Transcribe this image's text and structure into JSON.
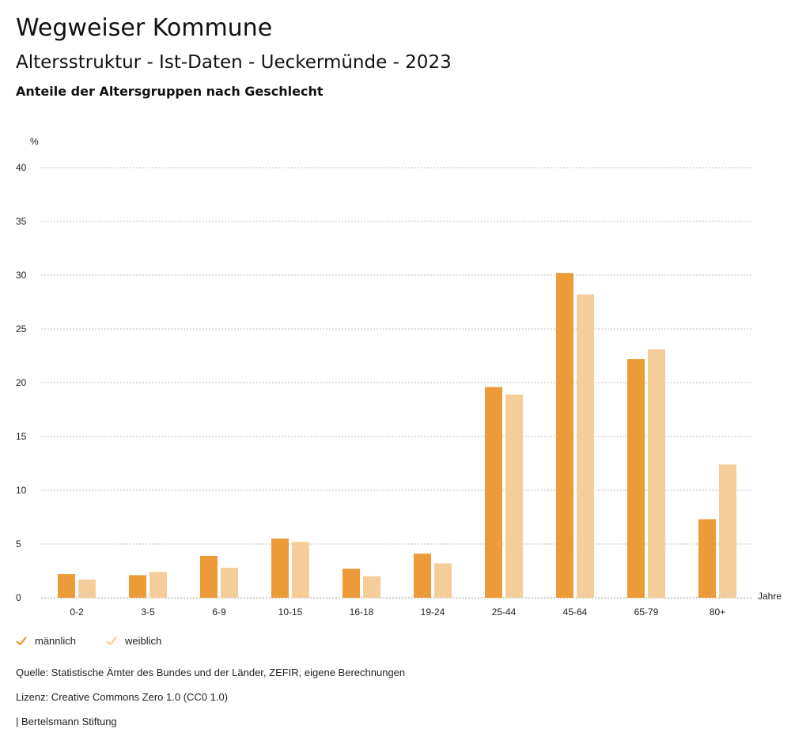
{
  "header": {
    "title": "Wegweiser Kommune",
    "subtitle": "Altersstruktur - Ist-Daten - Ueckermünde - 2023",
    "chart_heading": "Anteile der Altersgruppen nach Geschlecht"
  },
  "chart_data": {
    "type": "bar",
    "ylabel": "%",
    "xlabel": "Jahre",
    "ylim": [
      0,
      40
    ],
    "yticks": [
      0,
      5,
      10,
      15,
      20,
      25,
      30,
      35,
      40
    ],
    "grid": true,
    "categories": [
      "0-2",
      "3-5",
      "6-9",
      "10-15",
      "16-18",
      "19-24",
      "25-44",
      "45-64",
      "65-79",
      "80+"
    ],
    "series": [
      {
        "name": "männlich",
        "color": "#ed9a38",
        "values": [
          2.2,
          2.1,
          3.9,
          5.5,
          2.7,
          4.1,
          19.6,
          30.2,
          22.2,
          7.3
        ]
      },
      {
        "name": "weiblich",
        "color": "#f5cd9b",
        "values": [
          1.7,
          2.4,
          2.8,
          5.2,
          2.0,
          3.2,
          18.9,
          28.2,
          23.1,
          12.4
        ]
      }
    ]
  },
  "legend": {
    "items": [
      {
        "label": "männlich",
        "color": "#ed9a38"
      },
      {
        "label": "weiblich",
        "color": "#f5cd9b"
      }
    ]
  },
  "footer": {
    "source": "Quelle: Statistische Ämter des Bundes und der Länder, ZEFIR, eigene Berechnungen",
    "license": "Lizenz: Creative Commons Zero 1.0 (CC0 1.0)",
    "publisher": "| Bertelsmann Stiftung"
  }
}
